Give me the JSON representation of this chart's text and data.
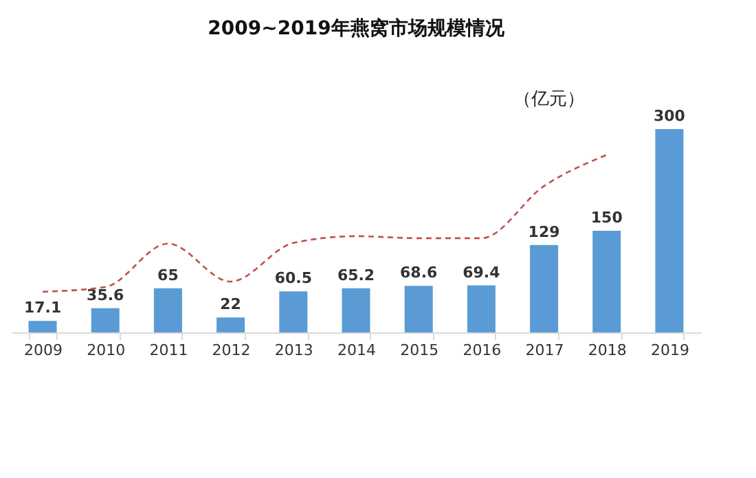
{
  "chart_data": {
    "type": "bar",
    "title": "2009~2019年燕窝市场规模情况",
    "annotations": [
      "（亿元）"
    ],
    "categories": [
      "2009",
      "2010",
      "2011",
      "2012",
      "2013",
      "2014",
      "2015",
      "2016",
      "2017",
      "2018",
      "2019"
    ],
    "series": [
      {
        "color": "#5b9bd5",
        "values": [
          17.1,
          35.6,
          65,
          22,
          60.5,
          65.2,
          68.6,
          69.4,
          129,
          150,
          300
        ],
        "value_labels": [
          "17.1",
          "35.6",
          "65",
          "22",
          "60.5",
          "65.2",
          "68.6",
          "69.4",
          "129",
          "150",
          "300"
        ]
      },
      {
        "type": "line",
        "color": "#c0504d",
        "line_style": "dashed",
        "values": [
          60,
          67,
          131,
          75,
          132,
          142,
          139,
          139,
          216,
          262,
          null
        ]
      }
    ],
    "tick_labels": "x"
  }
}
